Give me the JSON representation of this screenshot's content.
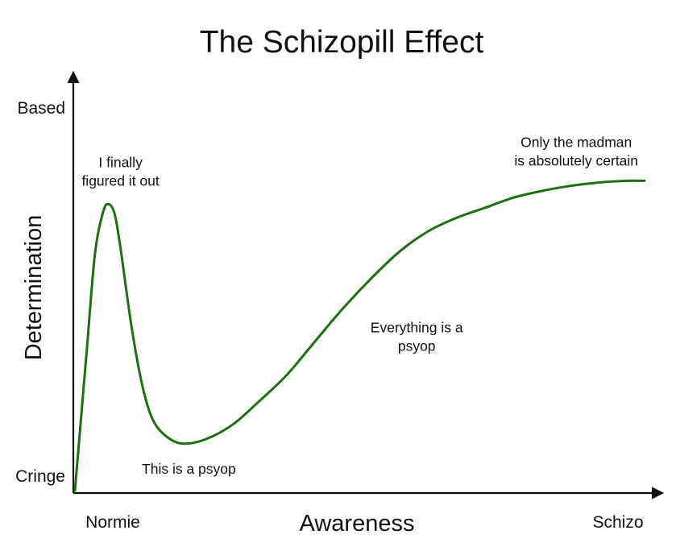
{
  "chart_data": {
    "type": "line",
    "title": "The Schizopill Effect",
    "xlabel": "Awareness",
    "ylabel": "Determination",
    "xlim": [
      0,
      100
    ],
    "ylim": [
      0,
      100
    ],
    "x_tick_labels": [
      {
        "value": 0,
        "label": "Normie"
      },
      {
        "value": 100,
        "label": "Schizo"
      }
    ],
    "y_tick_labels": [
      {
        "value": 0,
        "label": "Cringe"
      },
      {
        "value": 100,
        "label": "Based"
      }
    ],
    "grid": false,
    "legend": "none",
    "series_color": "#1e6e12",
    "series": [
      {
        "x": [
          0,
          2,
          3.5,
          5,
          6,
          7,
          8,
          10,
          12,
          14,
          17,
          20,
          24,
          28,
          32,
          37,
          42,
          47,
          52,
          57,
          62,
          67,
          72,
          77,
          82,
          87,
          92,
          97,
          100
        ],
        "y": [
          0,
          40,
          70,
          83,
          85,
          82,
          72,
          48,
          30,
          20,
          15,
          14,
          16,
          20,
          26,
          34,
          44,
          54,
          63,
          71,
          77,
          81,
          84,
          87,
          89,
          90.5,
          91.5,
          92,
          92
        ]
      }
    ],
    "annotations": [
      {
        "lines": [
          "I finally",
          "figured it out"
        ],
        "x": 8,
        "y": 96
      },
      {
        "lines": [
          "This is a psyop"
        ],
        "x": 20,
        "y": 5
      },
      {
        "lines": [
          "Everything is a",
          "psyop"
        ],
        "x": 60,
        "y": 47
      },
      {
        "lines": [
          "Only the madman",
          "is absolutely certain"
        ],
        "x": 88,
        "y": 102
      }
    ]
  }
}
